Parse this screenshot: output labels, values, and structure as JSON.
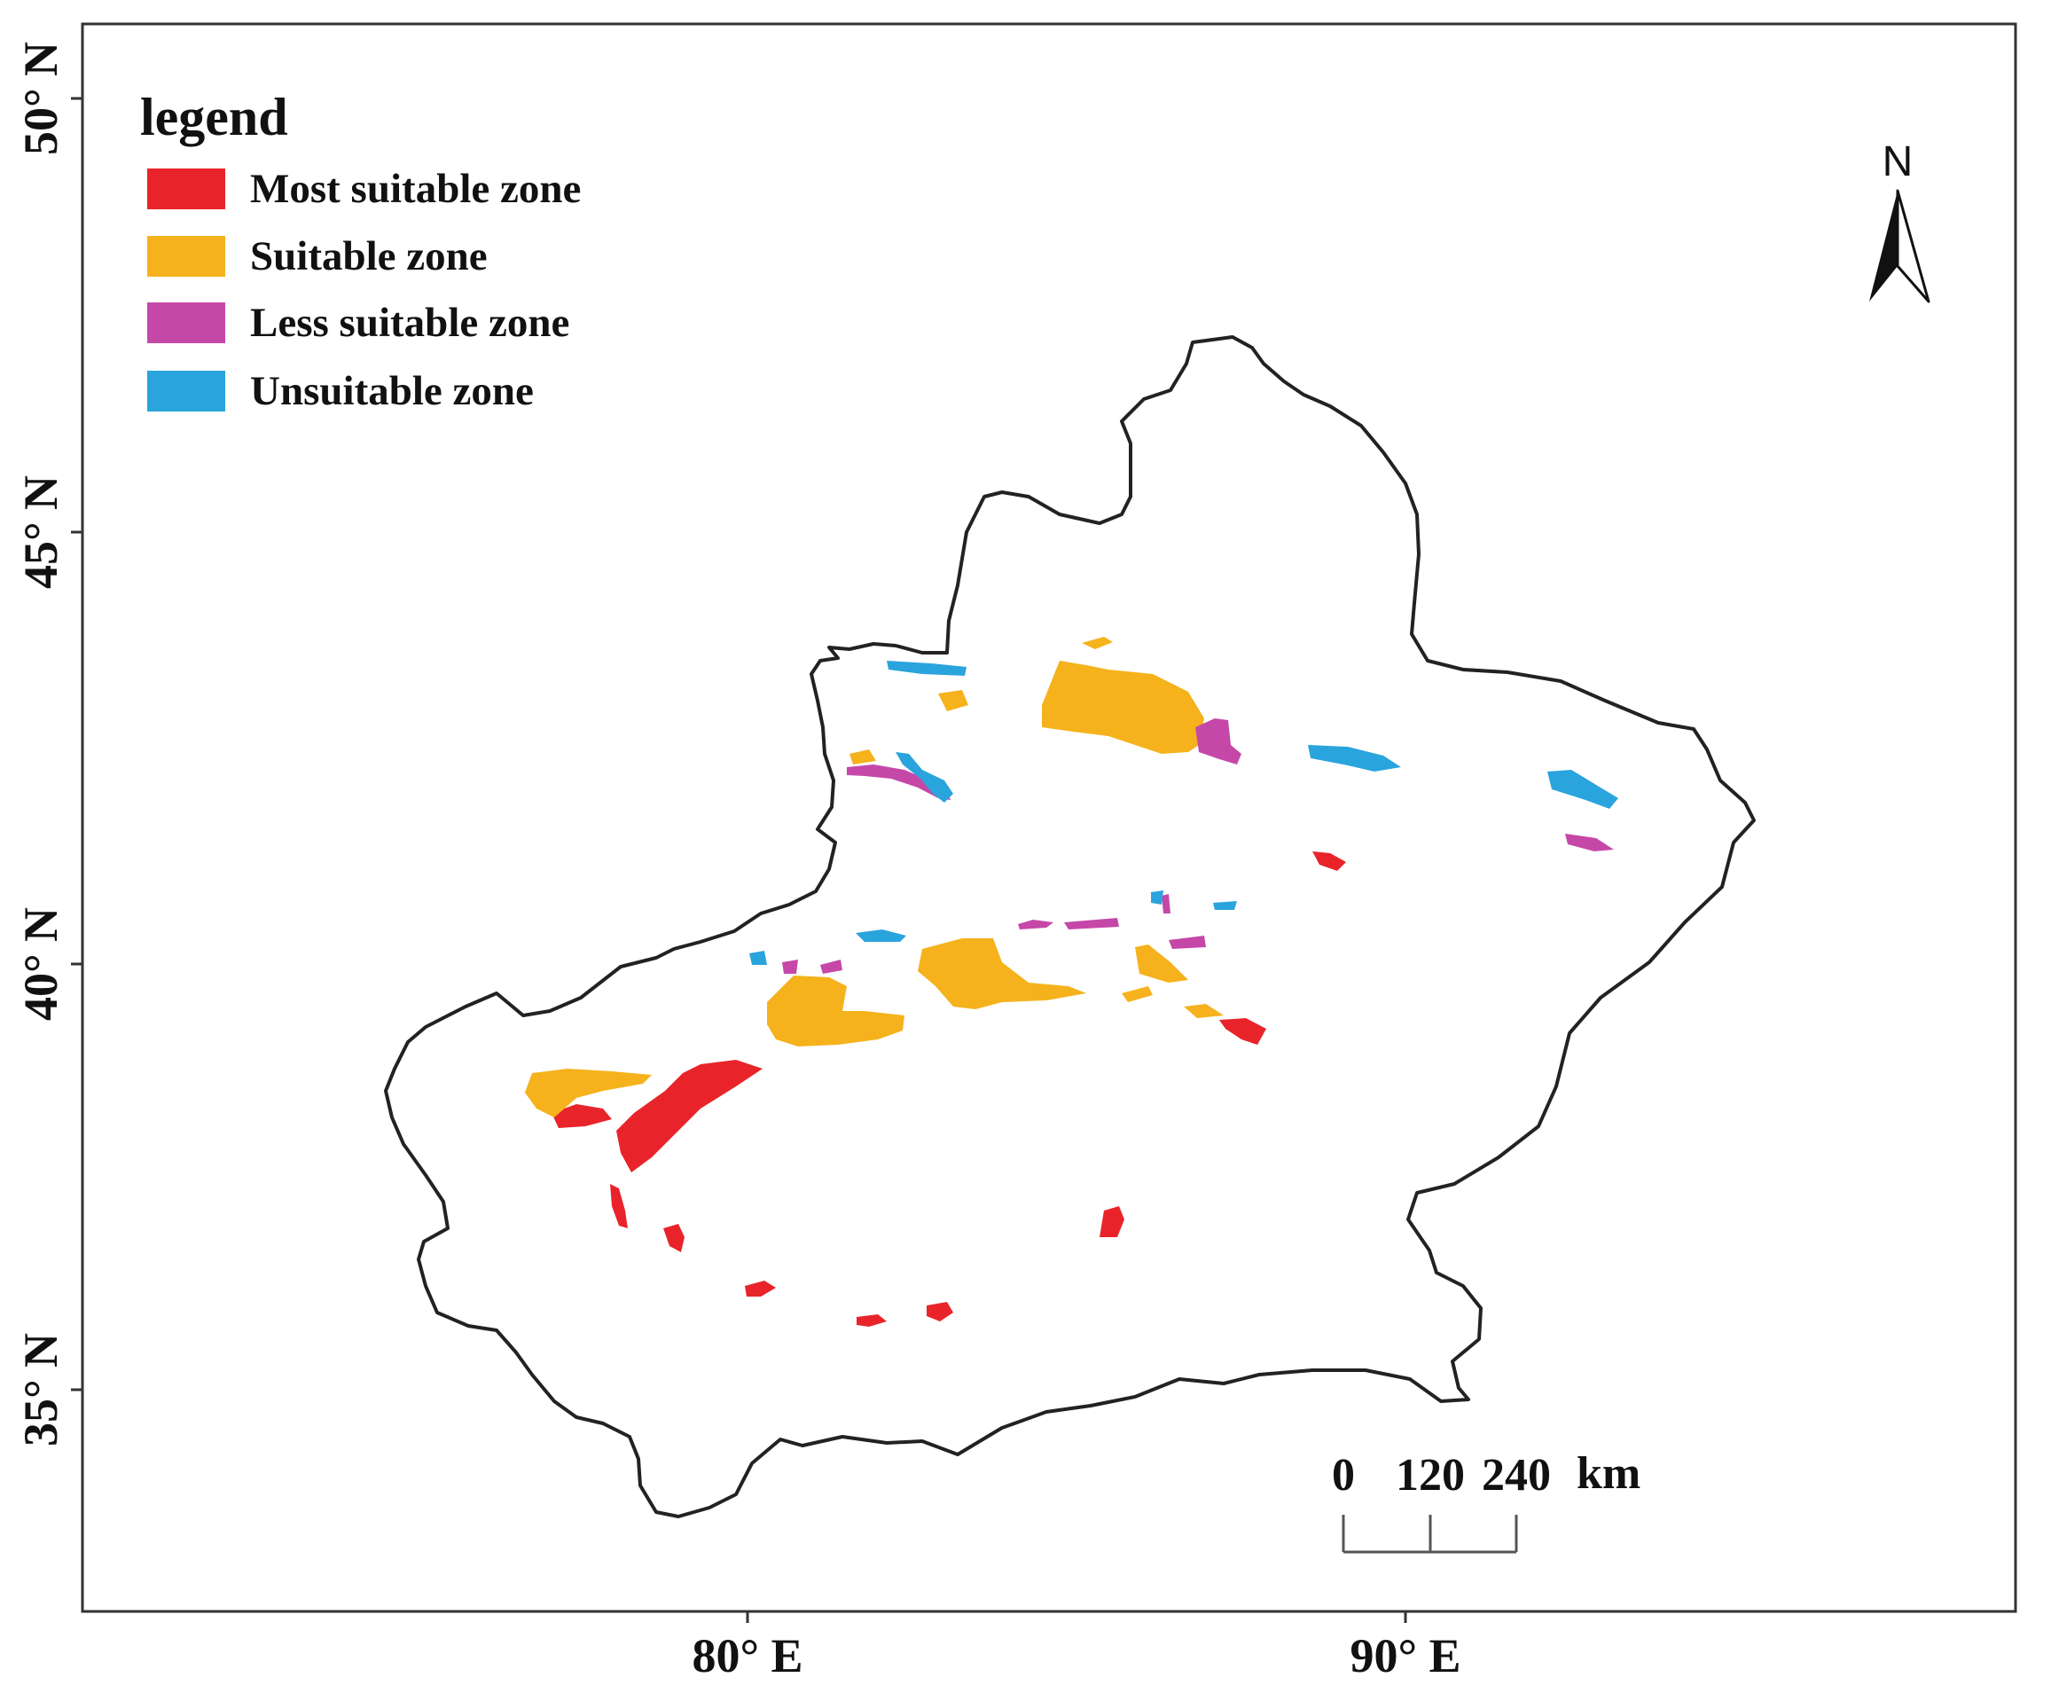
{
  "legend": {
    "title": "legend",
    "items": [
      {
        "label": "Most suitable zone",
        "color": "#e8242a"
      },
      {
        "label": "Suitable zone",
        "color": "#f5b21c"
      },
      {
        "label": "Less suitable zone",
        "color": "#c548a8"
      },
      {
        "label": "Unsuitable zone",
        "color": "#2aa4dc"
      }
    ]
  },
  "axes": {
    "latitude_labels": [
      "50° N",
      "45° N",
      "40° N",
      "35° N"
    ],
    "longitude_labels": [
      "80° E",
      "90° E"
    ]
  },
  "north_arrow": {
    "label": "N"
  },
  "scale_bar": {
    "ticks": [
      "0",
      "120",
      "240"
    ],
    "unit": "km"
  },
  "colors": {
    "border": "#222222",
    "frame": "#333333",
    "most_suitable": "#e8242a",
    "suitable": "#f5b21c",
    "less_suitable": "#c548a8",
    "unsuitable": "#2aa4dc"
  }
}
